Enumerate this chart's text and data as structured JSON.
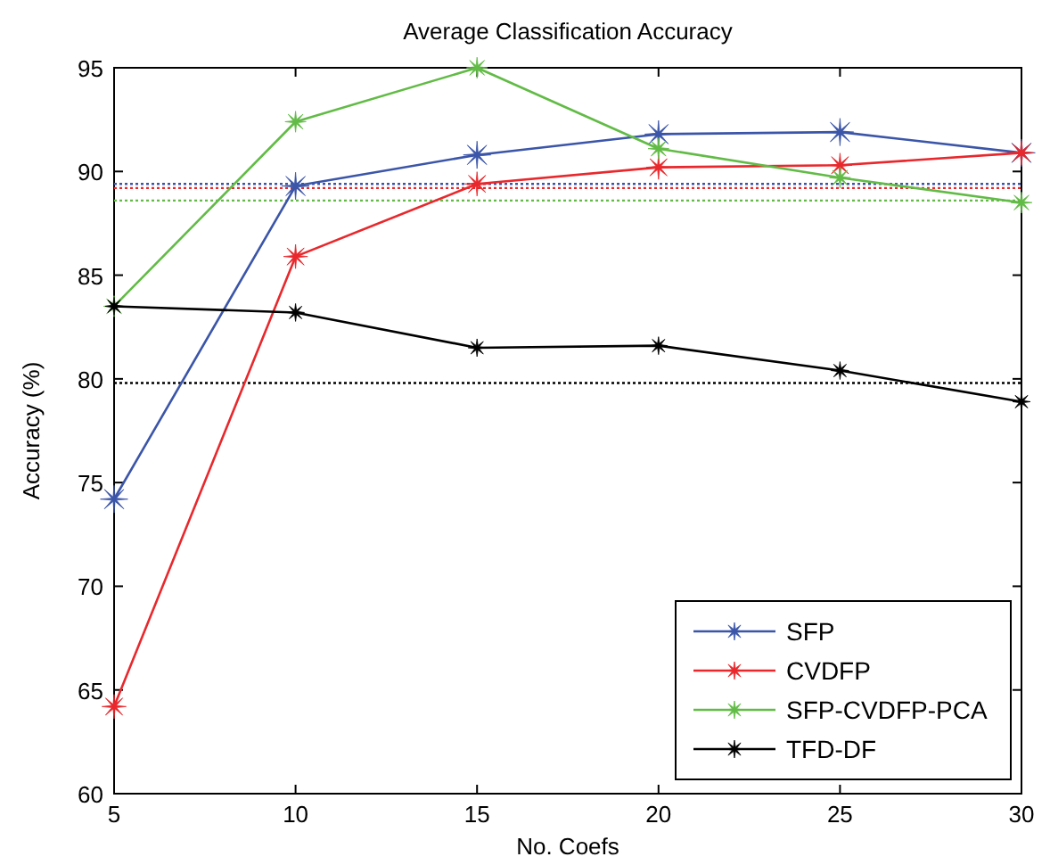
{
  "chart_data": {
    "type": "line",
    "title": "Average Classification Accuracy",
    "xlabel": "No. Coefs",
    "ylabel": "Accuracy (%)",
    "x": [
      5,
      10,
      15,
      20,
      25,
      30
    ],
    "series": [
      {
        "name": "SFP",
        "color": "#3b55a8",
        "values": [
          74.2,
          89.3,
          90.8,
          91.8,
          91.9,
          90.9
        ]
      },
      {
        "name": "CVDFP",
        "color": "#e8282c",
        "values": [
          64.2,
          85.9,
          89.4,
          90.2,
          90.3,
          90.9
        ]
      },
      {
        "name": "SFP-CVDFP-PCA",
        "color": "#62bb46",
        "values": [
          83.5,
          92.4,
          95,
          91.1,
          89.7,
          88.5
        ]
      },
      {
        "name": "TFD-DF",
        "color": "#000000",
        "values": [
          83.5,
          83.2,
          81.5,
          81.6,
          80.4,
          78.9
        ]
      }
    ],
    "ref_lines": [
      {
        "axis": "y",
        "value": 89.4,
        "color": "#3b55a8",
        "line_style": "dotted"
      },
      {
        "axis": "y",
        "value": 89.2,
        "color": "#e8282c",
        "line_style": "dotted"
      },
      {
        "axis": "y",
        "value": 88.6,
        "color": "#62bb46",
        "line_style": "dotted"
      },
      {
        "axis": "y",
        "value": 79.8,
        "color": "#000000",
        "line_style": "dotted"
      }
    ],
    "xlim": [
      5,
      30
    ],
    "xticks": [
      5,
      10,
      15,
      20,
      25,
      30
    ],
    "ylim": [
      60,
      95
    ],
    "yticks": [
      60,
      65,
      70,
      75,
      80,
      85,
      90,
      95
    ],
    "marker": "star",
    "line_style": "solid",
    "legend": "bottom right",
    "grid": false
  }
}
